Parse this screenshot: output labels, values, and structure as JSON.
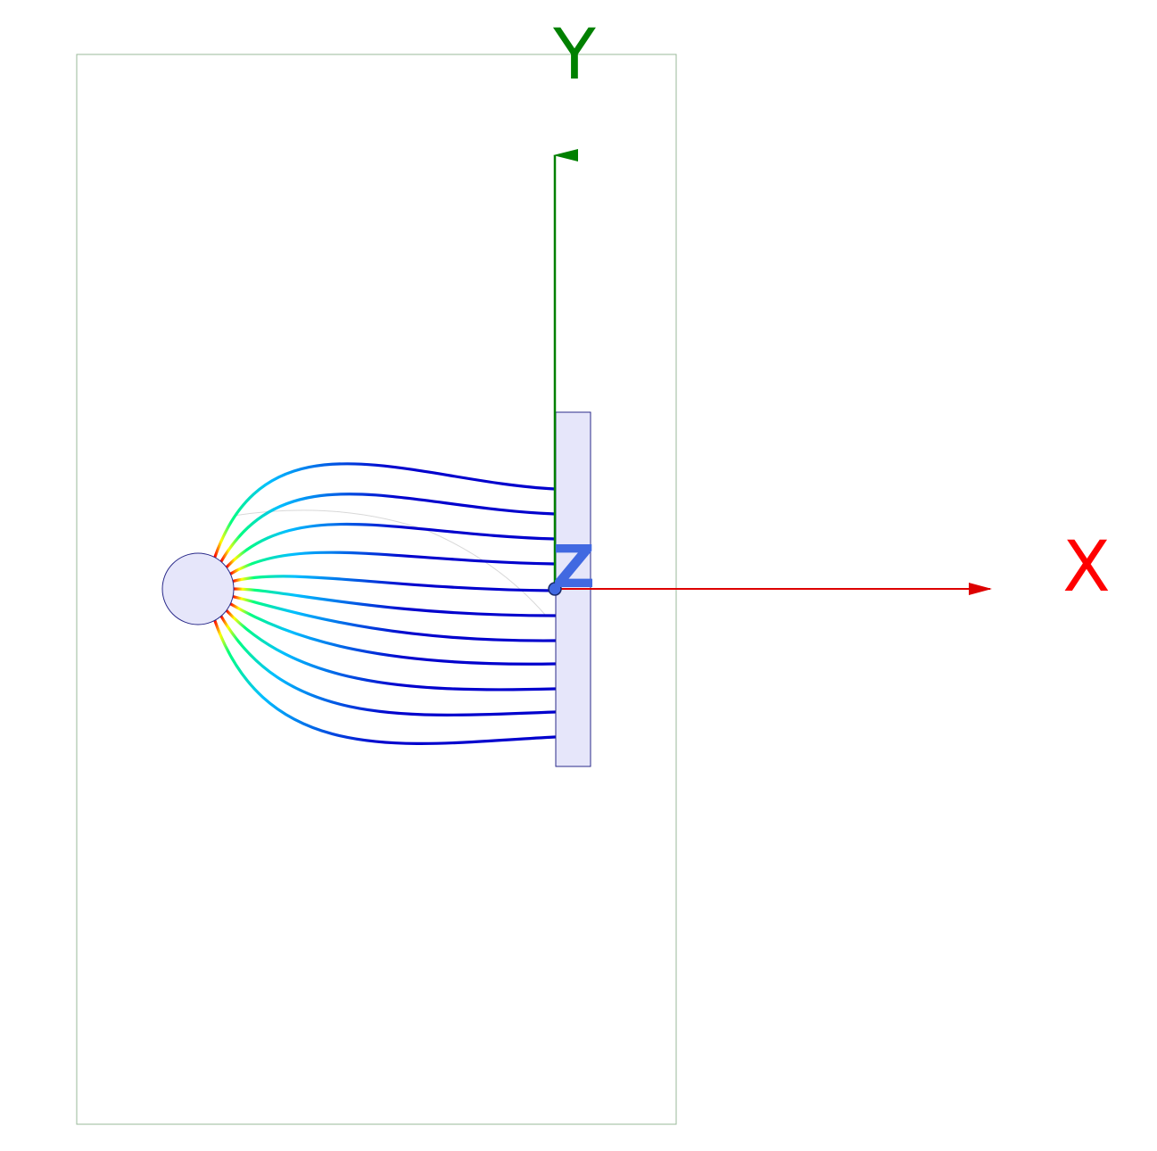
{
  "axes": {
    "x": {
      "label": "X",
      "color": "#ff0000"
    },
    "y": {
      "label": "Y",
      "color": "#008000"
    },
    "z": {
      "label": "Z",
      "color": "#4169e1"
    }
  },
  "colors": {
    "domain_border": "#9ab89a",
    "electrode_fill": "#e6e6fa",
    "electrode_stroke": "#2a2a8a",
    "colormap": [
      "#0000cd",
      "#00bfff",
      "#00ff7f",
      "#ffff00",
      "#ff0000"
    ]
  },
  "field_lines": {
    "count": 11,
    "color_scale": "jet"
  }
}
